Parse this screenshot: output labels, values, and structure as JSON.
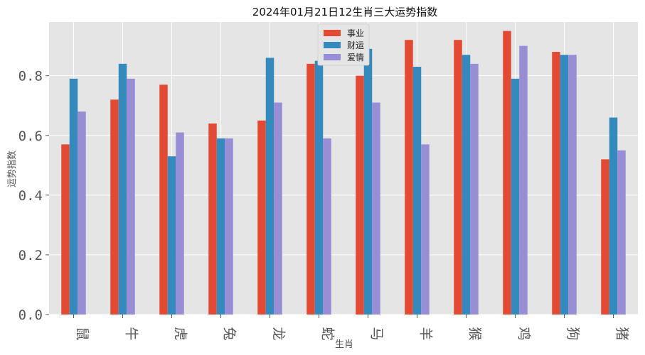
{
  "chart_data": {
    "type": "bar",
    "title": "2024年01月21日12生肖三大运势指数",
    "xlabel": "生肖",
    "ylabel": "运势指数",
    "categories": [
      "鼠",
      "牛",
      "虎",
      "兔",
      "龙",
      "蛇",
      "马",
      "羊",
      "猴",
      "鸡",
      "狗",
      "猪"
    ],
    "series": [
      {
        "name": "事业",
        "color": "#e24a33",
        "values": [
          0.57,
          0.72,
          0.77,
          0.64,
          0.65,
          0.84,
          0.8,
          0.92,
          0.92,
          0.95,
          0.88,
          0.52
        ]
      },
      {
        "name": "财运",
        "color": "#348abd",
        "values": [
          0.79,
          0.84,
          0.53,
          0.59,
          0.86,
          0.85,
          0.89,
          0.83,
          0.87,
          0.79,
          0.87,
          0.66
        ]
      },
      {
        "name": "爱情",
        "color": "#988ed5",
        "values": [
          0.68,
          0.79,
          0.61,
          0.59,
          0.71,
          0.59,
          0.71,
          0.57,
          0.84,
          0.9,
          0.87,
          0.55
        ]
      }
    ],
    "ylim": [
      0,
      0.98
    ],
    "yticks": [
      0.0,
      0.2,
      0.4,
      0.6,
      0.8
    ],
    "ytick_labels": [
      "0.0",
      "0.2",
      "0.4",
      "0.6",
      "0.8"
    ],
    "grid": true,
    "legend_position": "top-center",
    "plot_background": "#e5e5e5",
    "grid_color": "#ffffff"
  }
}
